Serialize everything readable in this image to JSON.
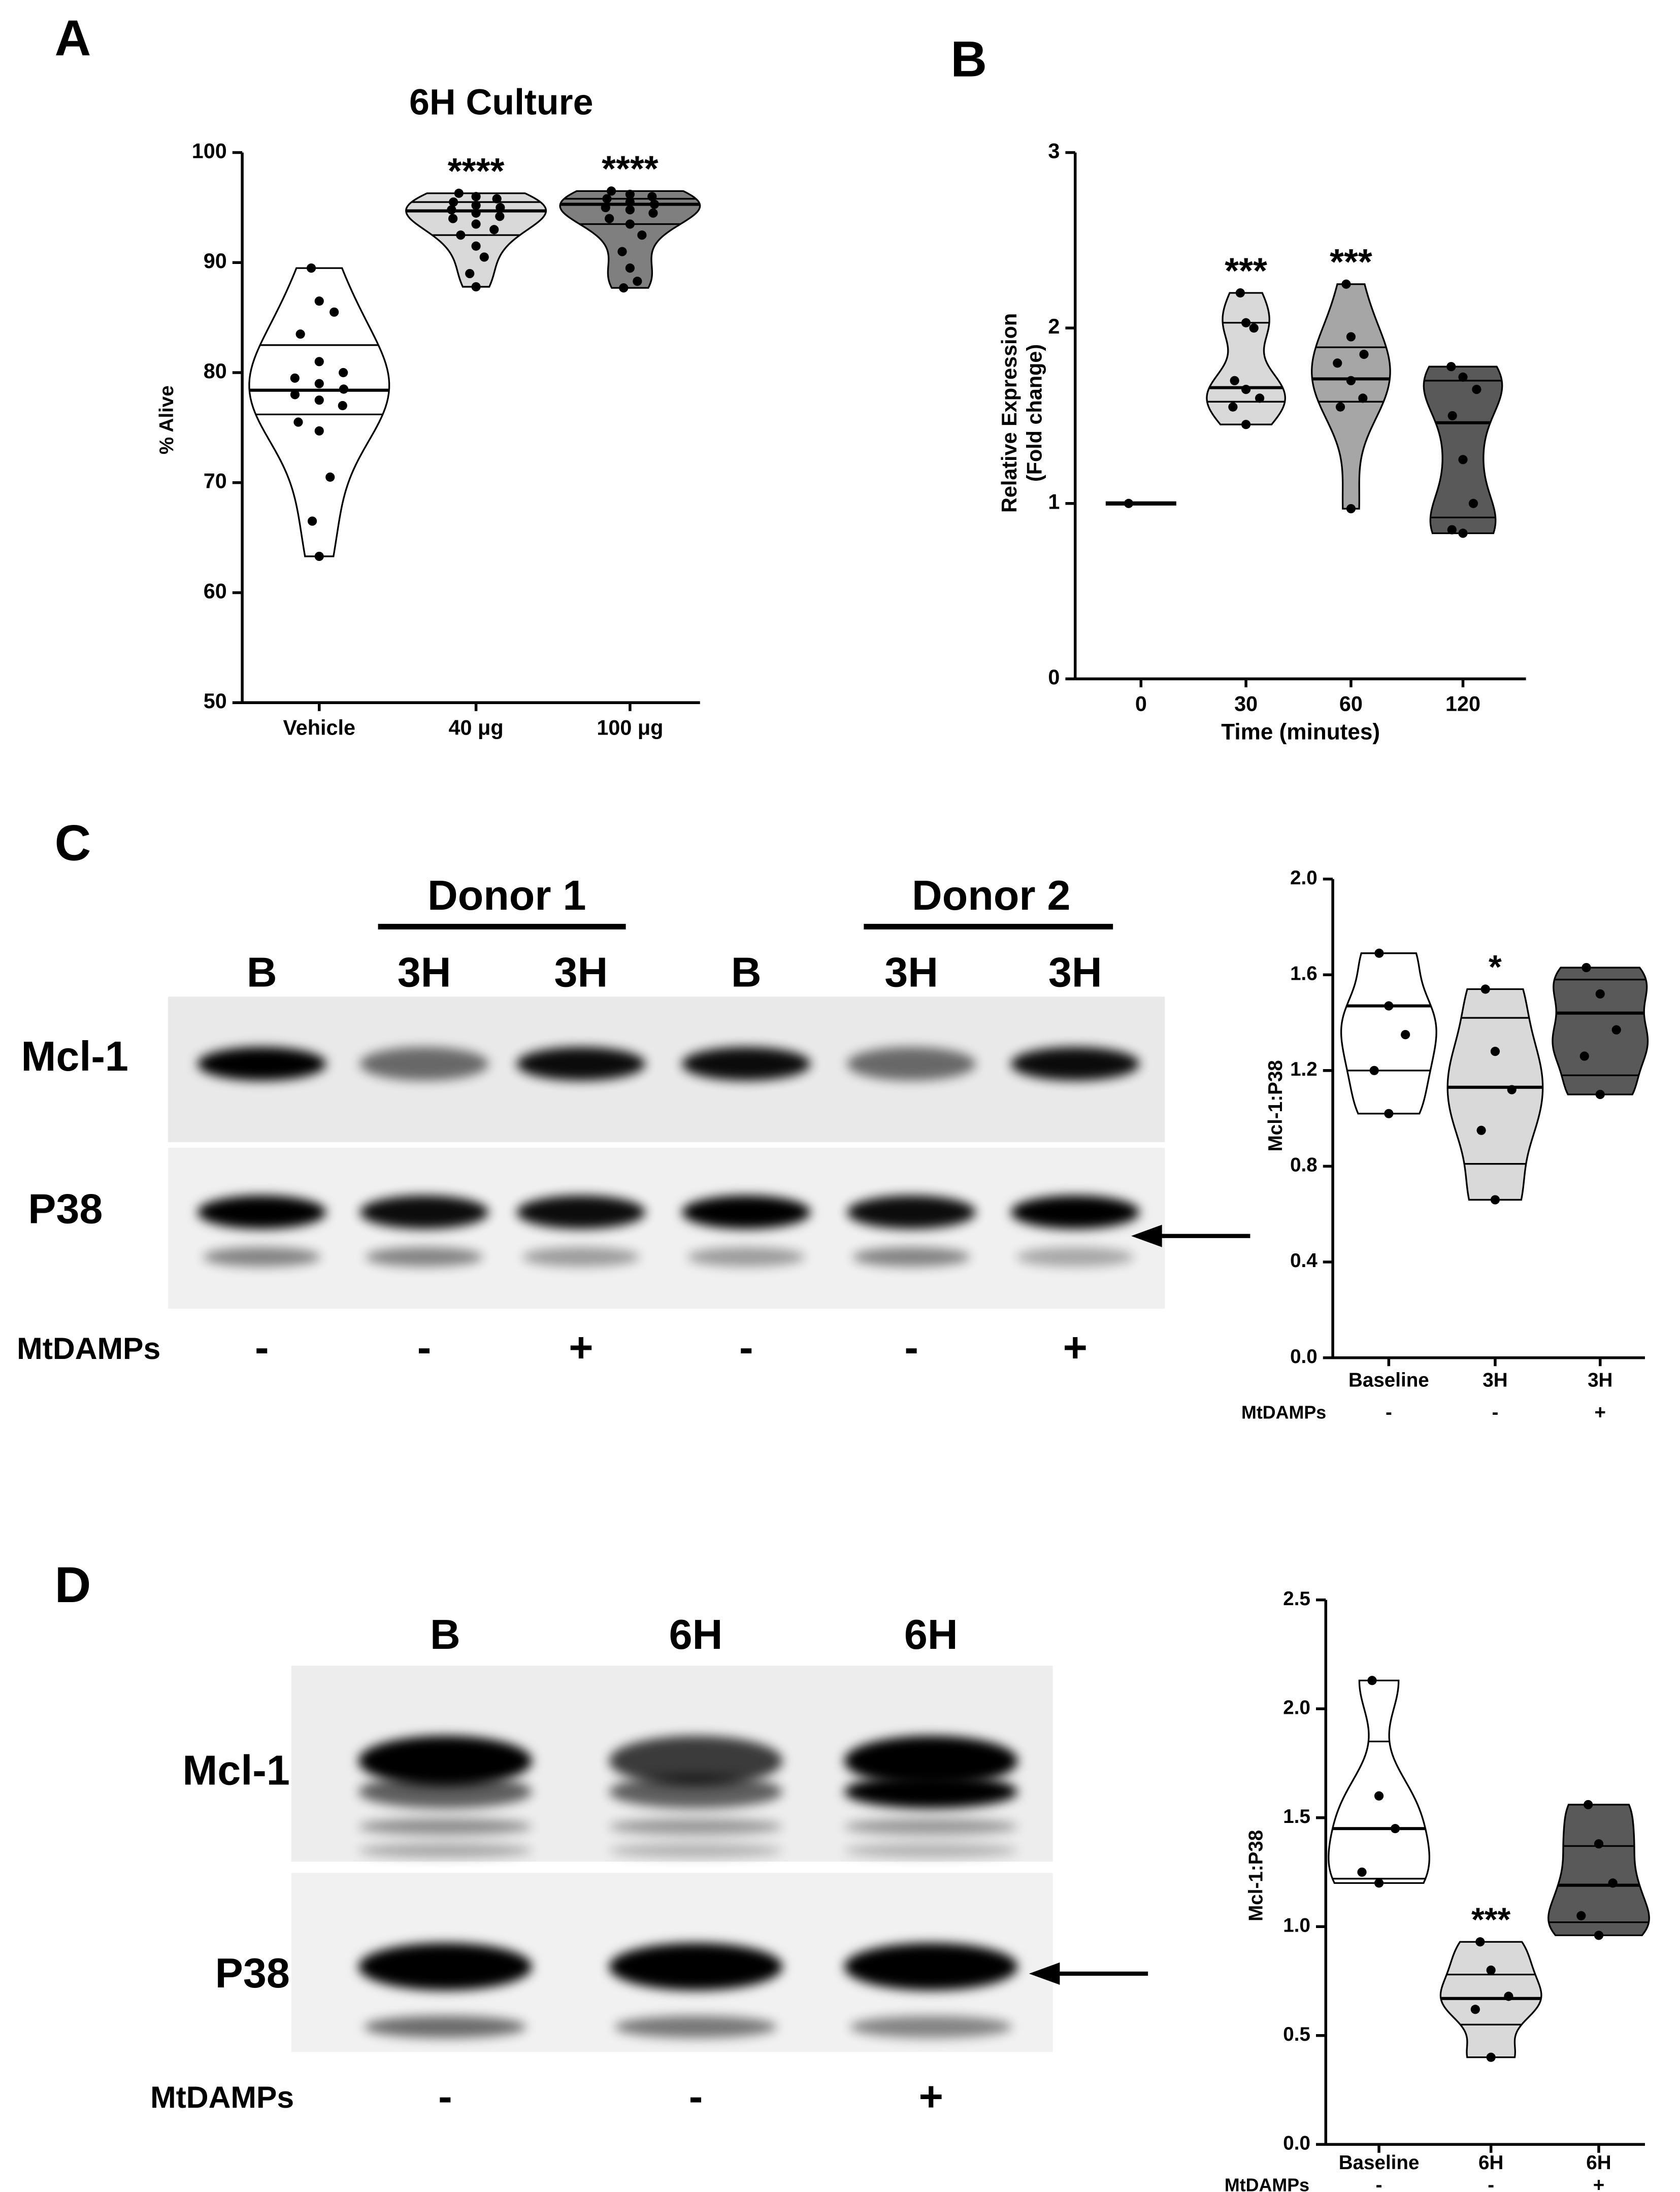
{
  "chart_data": [
    {
      "type": "violin",
      "panel": "A",
      "title": "6H Culture",
      "ylabel": "% Alive",
      "ylim": [
        50,
        100
      ],
      "yticks": [
        50,
        60,
        70,
        80,
        90,
        100
      ],
      "categories": [
        "Vehicle",
        "40 μg",
        "100 μg"
      ],
      "annotations": [
        null,
        "****",
        "****"
      ],
      "groups": [
        {
          "color": "#ffffff",
          "median": 78.4,
          "quartiles": [
            76.2,
            82.5
          ],
          "values": [
            89.5,
            86.5,
            85.5,
            83.5,
            81,
            80,
            79.5,
            79,
            78.5,
            78,
            77.5,
            77,
            75.5,
            74.7,
            70.5,
            66.5,
            63.3
          ]
        },
        {
          "color": "#d9d9d9",
          "median": 94.7,
          "quartiles": [
            92.5,
            95.5
          ],
          "values": [
            96.3,
            96,
            95.8,
            95.5,
            95.2,
            95,
            94.8,
            94.5,
            94.2,
            94,
            93.5,
            93,
            92.5,
            91.5,
            90.5,
            89,
            87.8
          ]
        },
        {
          "color": "#7f7f7f",
          "median": 95.3,
          "quartiles": [
            93.5,
            95.8
          ],
          "values": [
            96.5,
            96.2,
            96,
            95.8,
            95.5,
            95.3,
            95,
            94.8,
            94.5,
            94,
            93.5,
            92.5,
            91,
            89.5,
            88.3,
            87.7
          ]
        }
      ]
    },
    {
      "type": "violin",
      "panel": "B",
      "ylabel": [
        "Relative Expression",
        "(Fold change)"
      ],
      "xlabel": "Time (minutes)",
      "ylim": [
        0,
        3
      ],
      "yticks": [
        0,
        1,
        2,
        3
      ],
      "categories": [
        "0",
        "30",
        "60",
        "120"
      ],
      "annotations": [
        null,
        "***",
        "***",
        null
      ],
      "groups": [
        {
          "color": "#ffffff",
          "median": 1,
          "quartiles": [
            1,
            1
          ],
          "values": [
            1
          ]
        },
        {
          "color": "#d9d9d9",
          "median": 1.66,
          "quartiles": [
            1.58,
            2.03
          ],
          "values": [
            2.2,
            2.03,
            2.0,
            1.7,
            1.65,
            1.6,
            1.55,
            1.45
          ]
        },
        {
          "color": "#a6a6a6",
          "median": 1.71,
          "quartiles": [
            1.58,
            1.89
          ],
          "values": [
            2.25,
            1.95,
            1.85,
            1.8,
            1.7,
            1.6,
            1.55,
            0.97
          ]
        },
        {
          "color": "#595959",
          "median": 1.46,
          "quartiles": [
            0.92,
            1.7
          ],
          "values": [
            1.78,
            1.72,
            1.65,
            1.5,
            1.25,
            1.0,
            0.85,
            0.83
          ]
        }
      ]
    },
    {
      "type": "violin",
      "ylabel": "Mcl-1:P38",
      "ylim": [
        0,
        2
      ],
      "yticks": [
        {
          "value": 0,
          "label": "0.0"
        },
        0.4,
        0.8,
        1.2,
        1.6,
        {
          "value": 2,
          "label": "2.0"
        }
      ],
      "categories": [
        "Baseline",
        "3H",
        "3H"
      ],
      "row_label": "MtDAMPs",
      "row_values": [
        "-",
        "-",
        "+"
      ],
      "annotations": [
        null,
        "*",
        null
      ],
      "groups": [
        {
          "color": "#ffffff",
          "median": 1.47,
          "quartiles": [
            1.2,
            1.69
          ],
          "values": [
            1.69,
            1.47,
            1.35,
            1.2,
            1.02
          ]
        },
        {
          "color": "#d9d9d9",
          "median": 1.13,
          "quartiles": [
            0.81,
            1.42
          ],
          "values": [
            1.54,
            1.28,
            1.12,
            0.95,
            0.66
          ]
        },
        {
          "color": "#595959",
          "median": 1.44,
          "quartiles": [
            1.18,
            1.58
          ],
          "values": [
            1.63,
            1.52,
            1.37,
            1.26,
            1.1
          ]
        }
      ]
    },
    {
      "type": "violin",
      "ylabel": "Mcl-1:P38",
      "ylim": [
        0,
        2.5
      ],
      "yticks": [
        {
          "value": 0,
          "label": "0.0"
        },
        0.5,
        {
          "value": 1,
          "label": "1.0"
        },
        1.5,
        {
          "value": 2,
          "label": "2.0"
        },
        2.5
      ],
      "categories": [
        "Baseline",
        "6H",
        "6H"
      ],
      "row_label": "MtDAMPs",
      "row_values": [
        "-",
        "-",
        "+"
      ],
      "annotations": [
        null,
        "***",
        null
      ],
      "groups": [
        {
          "color": "#ffffff",
          "median": 1.45,
          "quartiles": [
            1.22,
            1.85
          ],
          "values": [
            2.13,
            1.6,
            1.45,
            1.25,
            1.2
          ]
        },
        {
          "color": "#d9d9d9",
          "median": 0.67,
          "quartiles": [
            0.55,
            0.78
          ],
          "values": [
            0.93,
            0.8,
            0.68,
            0.62,
            0.4
          ]
        },
        {
          "color": "#595959",
          "median": 1.19,
          "quartiles": [
            1.02,
            1.37
          ],
          "values": [
            1.56,
            1.38,
            1.2,
            1.05,
            0.96
          ]
        }
      ]
    }
  ],
  "blots": [
    {
      "panel": "C",
      "donors": [
        "Donor 1",
        "Donor 2"
      ],
      "lanes": [
        "B",
        "3H",
        "3H",
        "B",
        "3H",
        "3H"
      ],
      "rows": [
        "Mcl-1",
        "P38"
      ],
      "treatment": "MtDAMPs",
      "treatment_values": [
        "-",
        "-",
        "+",
        "-",
        "-",
        "+"
      ]
    },
    {
      "panel": "D",
      "lanes": [
        "B",
        "6H",
        "6H"
      ],
      "rows": [
        "Mcl-1",
        "P38"
      ],
      "treatment": "MtDAMPs",
      "treatment_values": [
        "-",
        "-",
        "+"
      ]
    }
  ]
}
